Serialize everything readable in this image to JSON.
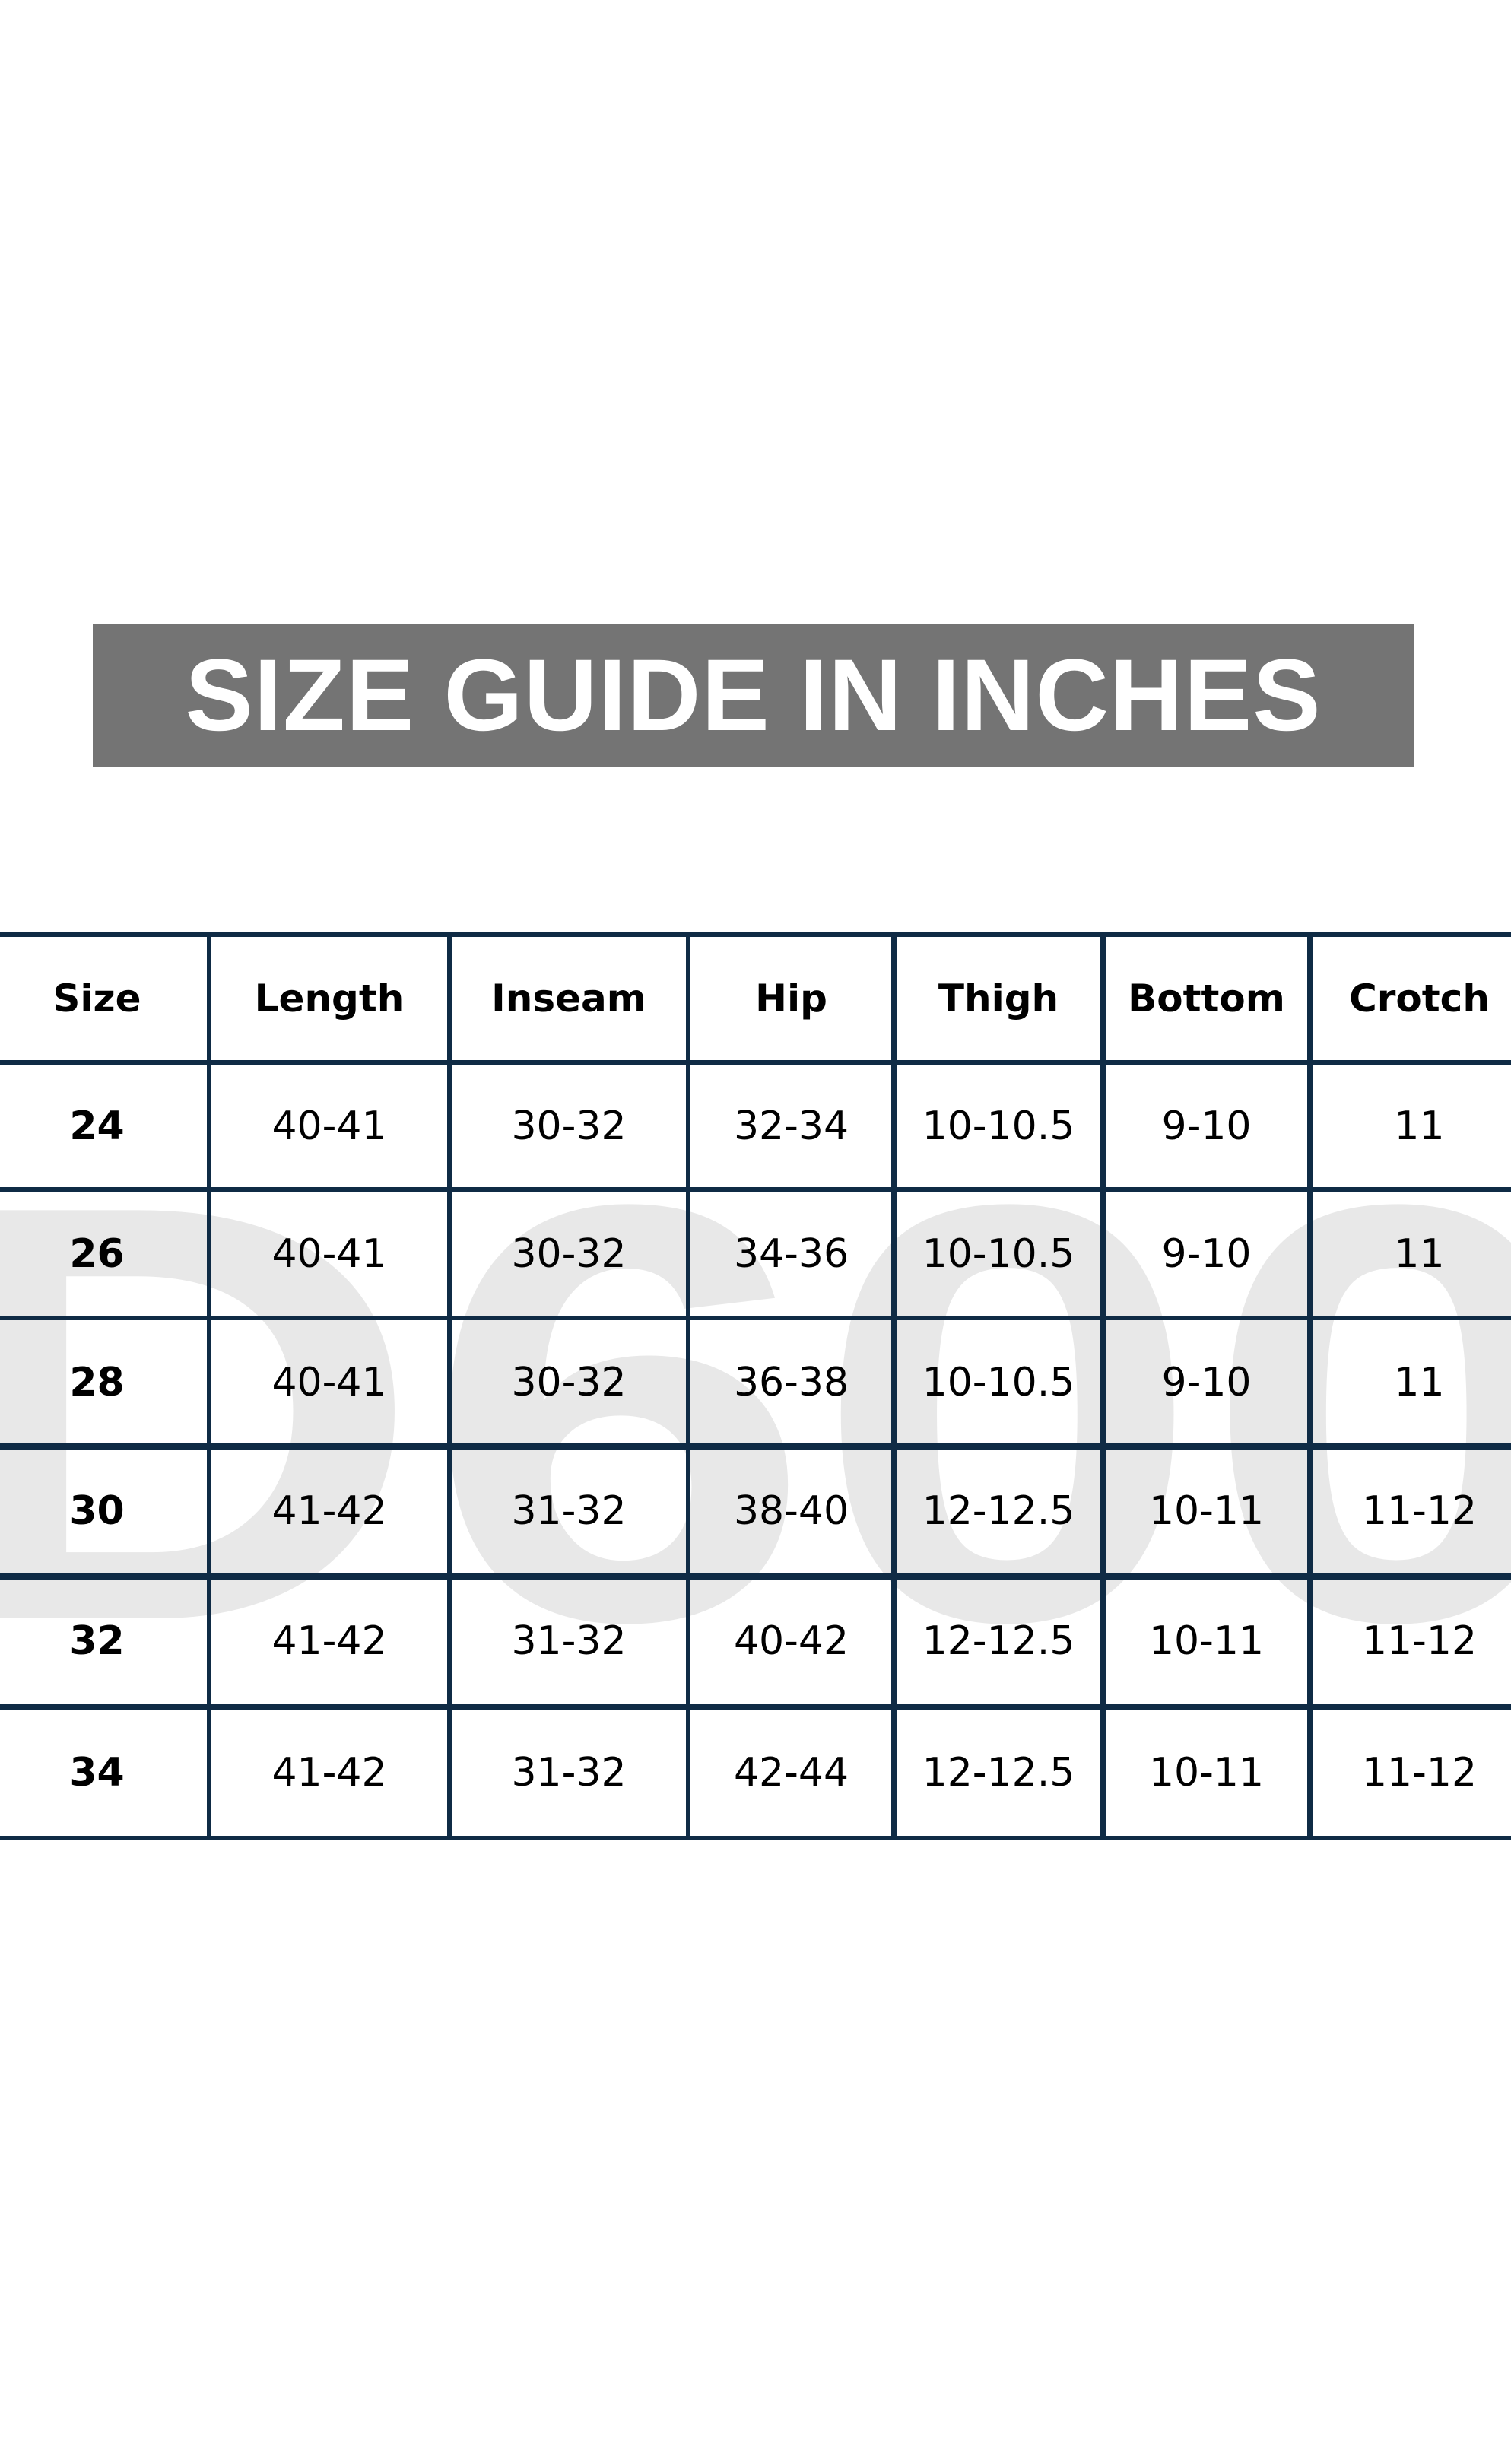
{
  "title": "SIZE GUIDE IN INCHES",
  "watermark": "D600",
  "colors": {
    "banner": "#747474",
    "grid": "#0f2b45",
    "watermark": "#e8e8e8"
  },
  "table": {
    "headers": [
      "Size",
      "Length",
      "Inseam",
      "Hip",
      "Thigh",
      "Bottom",
      "Crotch"
    ],
    "rows": [
      [
        "24",
        "40-41",
        "30-32",
        "32-34",
        "10-10.5",
        "9-10",
        "11"
      ],
      [
        "26",
        "40-41",
        "30-32",
        "34-36",
        "10-10.5",
        "9-10",
        "11"
      ],
      [
        "28",
        "40-41",
        "30-32",
        "36-38",
        "10-10.5",
        "9-10",
        "11"
      ],
      [
        "30",
        "41-42",
        "31-32",
        "38-40",
        "12-12.5",
        "10-11",
        "11-12"
      ],
      [
        "32",
        "41-42",
        "31-32",
        "40-42",
        "12-12.5",
        "10-11",
        "11-12"
      ],
      [
        "34",
        "41-42",
        "31-32",
        "42-44",
        "12-12.5",
        "10-11",
        "11-12"
      ]
    ]
  }
}
